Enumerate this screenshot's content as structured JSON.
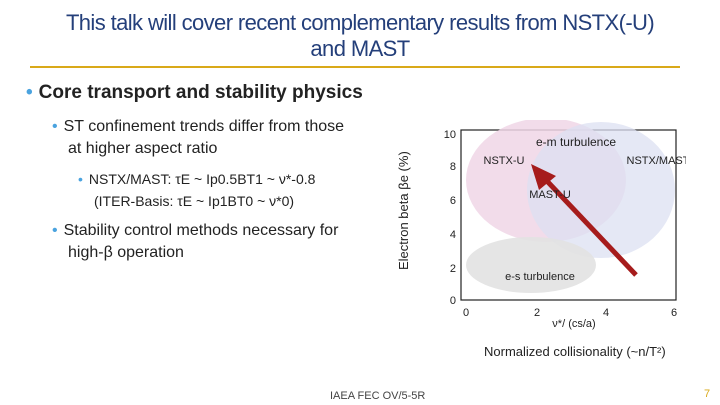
{
  "slide": {
    "title_line1": "This talk will cover recent complementary results from NSTX(-U)",
    "title_line2": "and MAST",
    "bullet_main": "Core transport and stability physics",
    "bullet_sub1_line1": "ST confinement trends differ from those",
    "bullet_sub1_line2": "at higher aspect ratio",
    "bullet_sub2_line1": "NSTX/MAST: τE ~ Ip0.5BT1 ~ ν*-0.8",
    "bullet_sub2_line2": "(ITER-Basis:   τE ~ Ip1BT0 ~ ν*0)",
    "bullet_sub3_line1": "Stability control methods necessary for",
    "bullet_sub3_line2": "high-β operation",
    "footer": "IAEA FEC OV/5-5R",
    "page_number": "7"
  },
  "chart": {
    "y_axis_label": "Electron beta",
    "y_axis_symbol": "βe (%)",
    "x_axis_label": "ν*/ (cs/a)",
    "x_axis_caption": "Normalized collisionality (~n/T²)",
    "y_ticks": [
      "10",
      "8",
      "6",
      "4",
      "2",
      "0"
    ],
    "x_ticks": [
      "0",
      "2",
      "4",
      "6"
    ],
    "regions": {
      "em": "e-m turbulence",
      "nstxu": "NSTX-U",
      "nstxmast": "NSTX/MAST",
      "mastu": "MAST-U",
      "es": "e-s turbulence"
    },
    "colors": {
      "accent_title": "#243f7a",
      "rule": "#d9a919",
      "arrow": "#a61c1c"
    }
  }
}
